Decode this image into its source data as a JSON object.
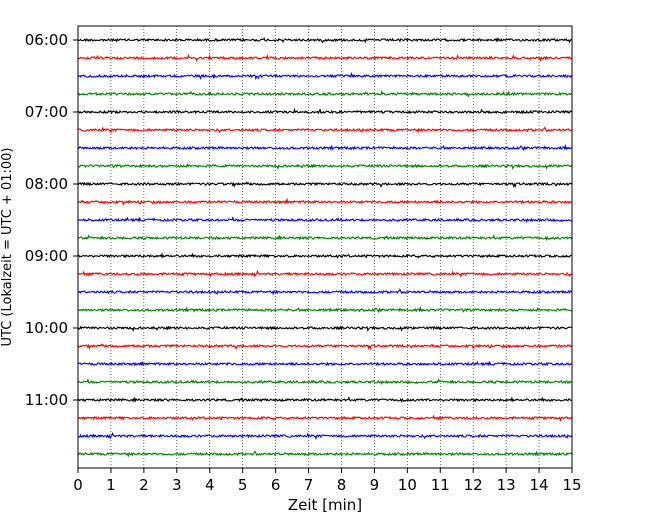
{
  "chart_data": {
    "type": "line",
    "title": "",
    "xlabel": "Zeit  [min]",
    "ylabel": "UTC (Lokalzeit = UTC + 01:00)",
    "xlim": [
      0,
      15
    ],
    "x_ticks": [
      "0",
      "1",
      "2",
      "3",
      "4",
      "5",
      "6",
      "7",
      "8",
      "9",
      "10",
      "11",
      "12",
      "13",
      "14",
      "15"
    ],
    "y_tick_labels": [
      "06:00",
      "07:00",
      "08:00",
      "09:00",
      "10:00",
      "11:00"
    ],
    "grid": "vertical dotted at every minute",
    "traces_per_hour": 4,
    "trace_minutes": 15,
    "trace_start_times": [
      "06:00",
      "06:15",
      "06:30",
      "06:45",
      "07:00",
      "07:15",
      "07:30",
      "07:45",
      "08:00",
      "08:15",
      "08:30",
      "08:45",
      "09:00",
      "09:15",
      "09:30",
      "09:45",
      "10:00",
      "10:15",
      "10:30",
      "10:45",
      "11:00",
      "11:15",
      "11:30",
      "11:45"
    ],
    "colors": [
      "#000000",
      "#ff0000",
      "#0000ff",
      "#008000"
    ]
  }
}
